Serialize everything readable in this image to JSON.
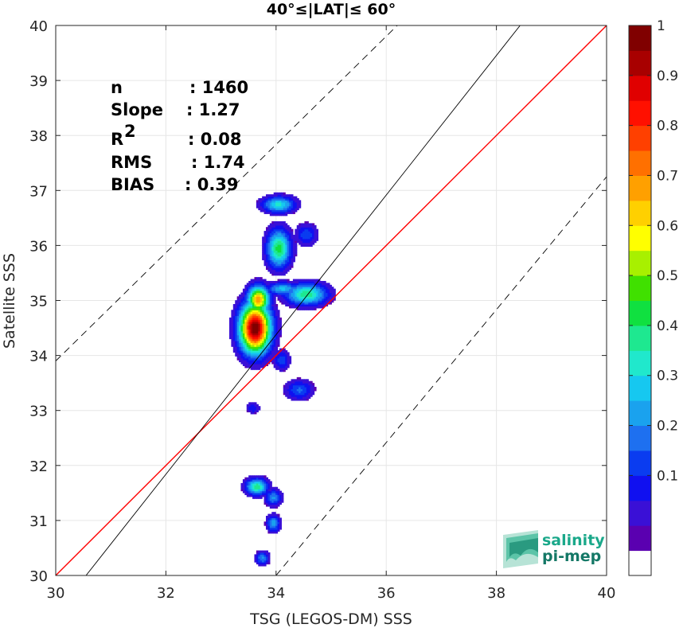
{
  "chart_data": {
    "type": "heatmap",
    "title": "40°≤|LAT|≤ 60°",
    "xlabel": "TSG (LEGOS-DM) SSS",
    "ylabel": "Satellite SSS",
    "xlim": [
      30,
      40
    ],
    "ylim": [
      30,
      40
    ],
    "xticks": [
      "30",
      "32",
      "34",
      "36",
      "38",
      "40"
    ],
    "yticks": [
      "30",
      "31",
      "32",
      "33",
      "34",
      "35",
      "36",
      "37",
      "38",
      "39",
      "40"
    ],
    "grid": true,
    "reference_lines": [
      {
        "name": "1:1",
        "color": "#ff0000",
        "style": "solid",
        "points": [
          [
            30,
            30
          ],
          [
            40,
            40
          ]
        ]
      },
      {
        "name": "regression",
        "color": "#000000",
        "style": "solid",
        "points": [
          [
            30.55,
            30
          ],
          [
            38.43,
            40
          ]
        ]
      },
      {
        "name": "upper",
        "color": "#000000",
        "style": "dashed",
        "points": [
          [
            30,
            33.9
          ],
          [
            36.2,
            40
          ]
        ]
      },
      {
        "name": "lower",
        "color": "#000000",
        "style": "dashed",
        "points": [
          [
            34,
            30
          ],
          [
            40,
            37.25
          ]
        ]
      }
    ],
    "density_blobs": [
      {
        "x": 33.62,
        "y": 34.5,
        "sx": 0.28,
        "sy": 0.45,
        "peak": 1.0
      },
      {
        "x": 33.68,
        "y": 35.02,
        "sx": 0.2,
        "sy": 0.25,
        "peak": 0.7
      },
      {
        "x": 34.05,
        "y": 35.95,
        "sx": 0.22,
        "sy": 0.35,
        "peak": 0.45
      },
      {
        "x": 34.05,
        "y": 36.75,
        "sx": 0.3,
        "sy": 0.15,
        "peak": 0.35
      },
      {
        "x": 34.55,
        "y": 35.12,
        "sx": 0.38,
        "sy": 0.2,
        "peak": 0.42
      },
      {
        "x": 34.55,
        "y": 36.2,
        "sx": 0.2,
        "sy": 0.2,
        "peak": 0.18
      },
      {
        "x": 34.12,
        "y": 35.22,
        "sx": 0.3,
        "sy": 0.12,
        "peak": 0.3
      },
      {
        "x": 34.1,
        "y": 33.92,
        "sx": 0.15,
        "sy": 0.18,
        "peak": 0.18
      },
      {
        "x": 34.42,
        "y": 33.38,
        "sx": 0.25,
        "sy": 0.18,
        "peak": 0.2
      },
      {
        "x": 33.58,
        "y": 33.05,
        "sx": 0.12,
        "sy": 0.1,
        "peak": 0.14
      },
      {
        "x": 33.65,
        "y": 31.62,
        "sx": 0.2,
        "sy": 0.15,
        "peak": 0.42
      },
      {
        "x": 33.95,
        "y": 31.42,
        "sx": 0.15,
        "sy": 0.15,
        "peak": 0.25
      },
      {
        "x": 33.95,
        "y": 30.95,
        "sx": 0.12,
        "sy": 0.15,
        "peak": 0.28
      },
      {
        "x": 33.75,
        "y": 30.32,
        "sx": 0.12,
        "sy": 0.12,
        "peak": 0.25
      }
    ],
    "colorbar": {
      "range": [
        0,
        1
      ],
      "ticks": [
        "0.1",
        "0.2",
        "0.3",
        "0.4",
        "0.5",
        "0.6",
        "0.7",
        "0.8",
        "0.9",
        "1"
      ],
      "colors": [
        "#ffffff",
        "#5a00b0",
        "#3a10d6",
        "#1010f0",
        "#0a3cf0",
        "#1e70f0",
        "#1aa2ee",
        "#16c8f0",
        "#20e8cc",
        "#1ee890",
        "#10e040",
        "#40e000",
        "#a8f000",
        "#ffff00",
        "#ffd000",
        "#ffa000",
        "#ff7000",
        "#ff4000",
        "#ff1000",
        "#e00000",
        "#a80000",
        "#800000"
      ]
    },
    "stats": [
      {
        "label": "n",
        "value": ": 1460"
      },
      {
        "label": "Slope",
        "value": ": 1.27"
      },
      {
        "label": "R",
        "sup": "2",
        "value": ": 0.08"
      },
      {
        "label": "RMS",
        "value": ": 1.74"
      },
      {
        "label": "BIAS",
        "value": ": 0.39"
      }
    ]
  },
  "logo": {
    "line1": "salinity",
    "line2": "pi-mep",
    "color1": "#1aa88a",
    "color2": "#147866"
  }
}
